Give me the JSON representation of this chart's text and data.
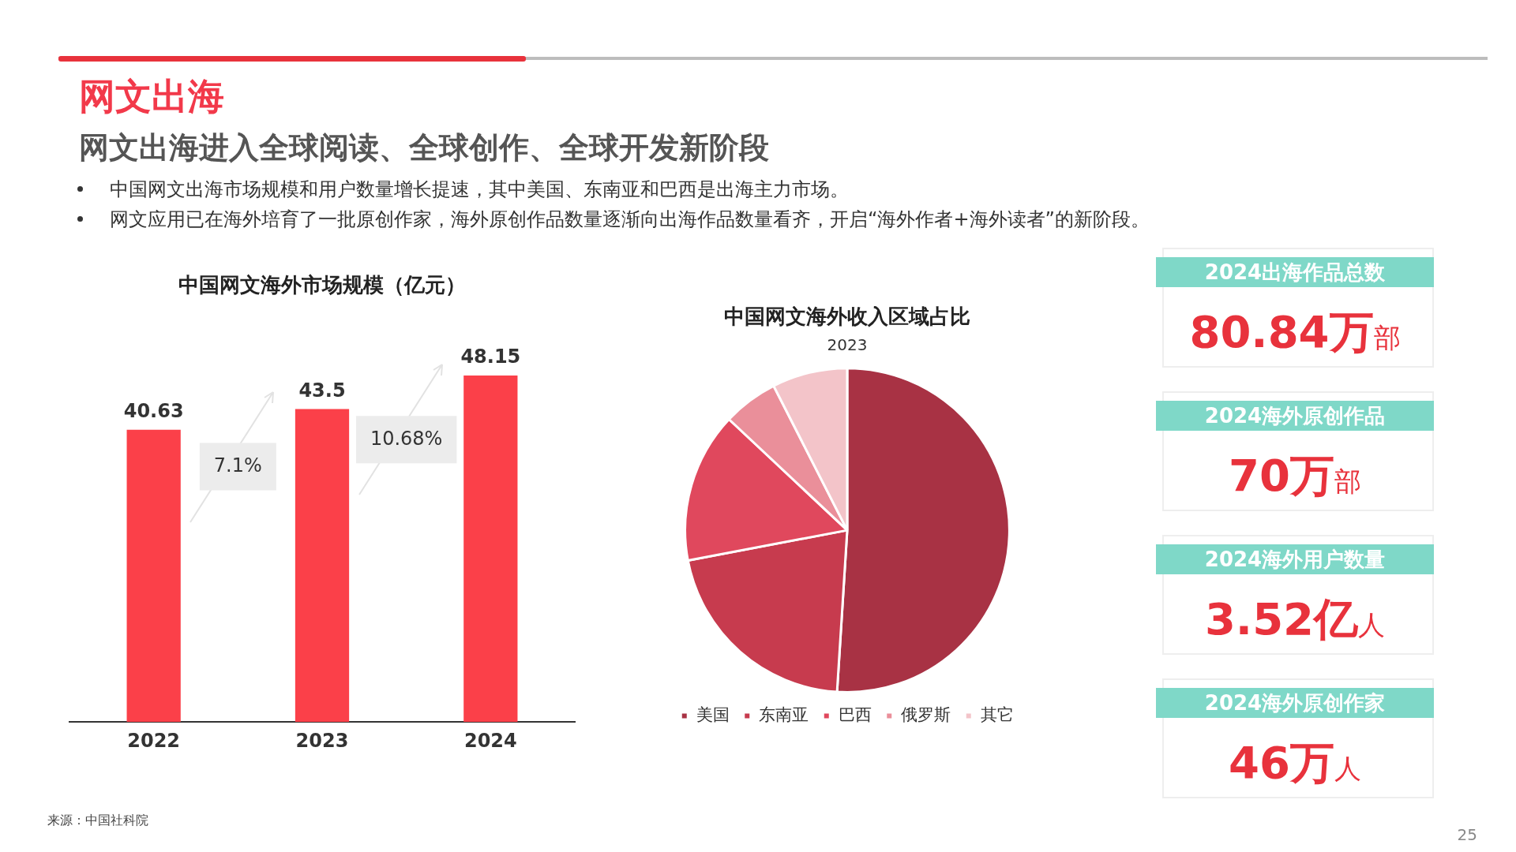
{
  "chart_data": [
    {
      "type": "other",
      "title": "网文出海",
      "subtitle": "网文出海进入全球阅读、全球创作、全球开发新阶段",
      "annotations": [
        "中国网文出海市场规模和用户数量增长提速，其中美国、东南亚和巴西是出海主力市场。",
        "网文应用已在海外培育了一批原创作家，海外原创作品数量逐渐向出海作品数量看齐，开启“海外作者+海外读者”的新阶段。"
      ]
    },
    {
      "type": "bar",
      "title": "中国网文海外市场规模（亿元）",
      "categories": [
        "2022",
        "2023",
        "2024"
      ],
      "values": [
        40.63,
        43.5,
        48.15
      ],
      "color": "#fb4049",
      "data_labels": true,
      "tick_labels": "x",
      "annotations": [
        "7.1%",
        "10.68%",
        "来源：中国社科院",
        "25"
      ]
    },
    {
      "type": "pie",
      "title": "中国网文海外收入区域占比",
      "subtitle": "2023",
      "categories": [
        "美国",
        "东南亚",
        "巴西",
        "俄罗斯",
        "其它"
      ],
      "values": [
        51,
        21,
        15,
        5.5,
        7.5
      ],
      "colors": [
        "#a83244",
        "#c73b4e",
        "#e0485d",
        "#ea8f9a",
        "#f3c4c9"
      ],
      "legend": "bottom"
    },
    {
      "type": "other",
      "annotations": [
        "2024出海作品总数",
        "80.84万部",
        "2024海外原创作品",
        "70万部",
        "2024海外用户数量",
        "3.52亿人",
        "2024海外原创作家",
        "46万人"
      ]
    }
  ]
}
